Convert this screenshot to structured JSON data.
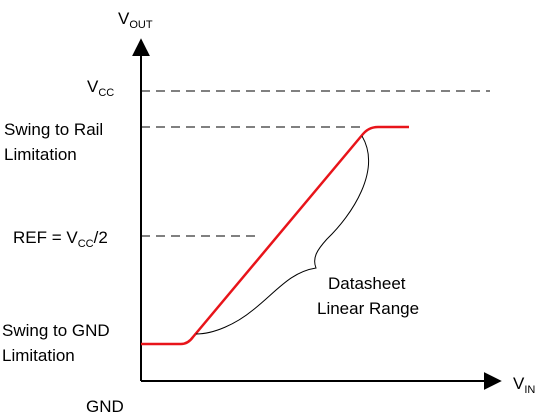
{
  "axes": {
    "y_label_main": "V",
    "y_label_sub": "OUT",
    "x_label_main": "V",
    "x_label_sub": "IN"
  },
  "levels": {
    "vcc_main": "V",
    "vcc_sub": "CC",
    "swing_rail_line1": "Swing to Rail",
    "swing_rail_line2": "Limitation",
    "ref_prefix": "REF = V",
    "ref_sub": "CC",
    "ref_suffix": "/2",
    "swing_gnd_line1": "Swing to GND",
    "swing_gnd_line2": "Limitation",
    "gnd": "GND"
  },
  "annotation": {
    "line1": "Datasheet",
    "line2": "Linear Range"
  },
  "colors": {
    "curve": "#e8141a",
    "axis": "#000000",
    "dashed": "#000000"
  }
}
